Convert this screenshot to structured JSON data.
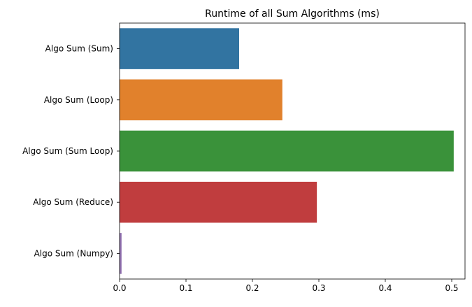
{
  "chart_data": {
    "type": "bar",
    "orientation": "horizontal",
    "title": "Runtime of all Sum Algorithms (ms)",
    "xlabel": "",
    "ylabel": "",
    "categories": [
      "Algo Sum (Sum)",
      "Algo Sum (Loop)",
      "Algo Sum (Sum Loop)",
      "Algo Sum (Reduce)",
      "Algo Sum (Numpy)"
    ],
    "values": [
      0.18,
      0.245,
      0.503,
      0.297,
      0.003
    ],
    "colors": [
      "#3274a1",
      "#e1812c",
      "#3a923a",
      "#c03d3e",
      "#9372b2"
    ],
    "xlim": [
      0,
      0.52
    ],
    "xticks": [
      "0.0",
      "0.1",
      "0.2",
      "0.3",
      "0.4",
      "0.5"
    ],
    "grid": false,
    "legend": "none"
  }
}
